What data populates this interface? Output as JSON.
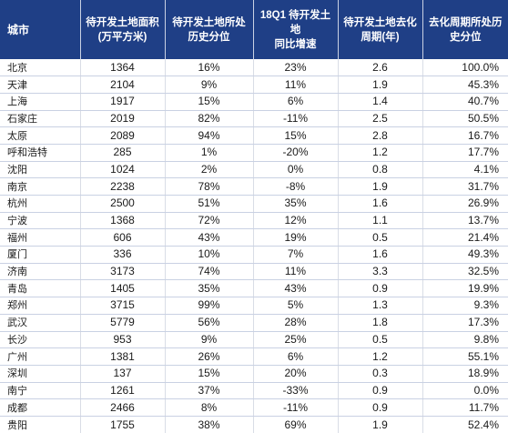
{
  "headers": {
    "city": "城市",
    "area_line1": "待开发土地面积",
    "area_line2": "(万平方米)",
    "pct_line1": "待开发土地所处",
    "pct_line2": "历史分位",
    "growth_line1": "18Q1 待开发土地",
    "growth_line2": "同比增速",
    "period_line1": "待开发土地去化",
    "period_line2": "周期(年)",
    "ppct_line1": "去化周期所处历",
    "ppct_line2": "史分位"
  },
  "rows": [
    {
      "city": "北京",
      "area": "1364",
      "pct": "16%",
      "growth": "23%",
      "period": "2.6",
      "ppct": "100.0%"
    },
    {
      "city": "天津",
      "area": "2104",
      "pct": "9%",
      "growth": "11%",
      "period": "1.9",
      "ppct": "45.3%"
    },
    {
      "city": "上海",
      "area": "1917",
      "pct": "15%",
      "growth": "6%",
      "period": "1.4",
      "ppct": "40.7%"
    },
    {
      "city": "石家庄",
      "area": "2019",
      "pct": "82%",
      "growth": "-11%",
      "period": "2.5",
      "ppct": "50.5%"
    },
    {
      "city": "太原",
      "area": "2089",
      "pct": "94%",
      "growth": "15%",
      "period": "2.8",
      "ppct": "16.7%"
    },
    {
      "city": "呼和浩特",
      "area": "285",
      "pct": "1%",
      "growth": "-20%",
      "period": "1.2",
      "ppct": "17.7%"
    },
    {
      "city": "沈阳",
      "area": "1024",
      "pct": "2%",
      "growth": "0%",
      "period": "0.8",
      "ppct": "4.1%"
    },
    {
      "city": "南京",
      "area": "2238",
      "pct": "78%",
      "growth": "-8%",
      "period": "1.9",
      "ppct": "31.7%"
    },
    {
      "city": "杭州",
      "area": "2500",
      "pct": "51%",
      "growth": "35%",
      "period": "1.6",
      "ppct": "26.9%"
    },
    {
      "city": "宁波",
      "area": "1368",
      "pct": "72%",
      "growth": "12%",
      "period": "1.1",
      "ppct": "13.7%"
    },
    {
      "city": "福州",
      "area": "606",
      "pct": "43%",
      "growth": "19%",
      "period": "0.5",
      "ppct": "21.4%"
    },
    {
      "city": "厦门",
      "area": "336",
      "pct": "10%",
      "growth": "7%",
      "period": "1.6",
      "ppct": "49.3%"
    },
    {
      "city": "济南",
      "area": "3173",
      "pct": "74%",
      "growth": "11%",
      "period": "3.3",
      "ppct": "32.5%"
    },
    {
      "city": "青岛",
      "area": "1405",
      "pct": "35%",
      "growth": "43%",
      "period": "0.9",
      "ppct": "19.9%"
    },
    {
      "city": "郑州",
      "area": "3715",
      "pct": "99%",
      "growth": "5%",
      "period": "1.3",
      "ppct": "9.3%"
    },
    {
      "city": "武汉",
      "area": "5779",
      "pct": "56%",
      "growth": "28%",
      "period": "1.8",
      "ppct": "17.3%"
    },
    {
      "city": "长沙",
      "area": "953",
      "pct": "9%",
      "growth": "25%",
      "period": "0.5",
      "ppct": "9.8%"
    },
    {
      "city": "广州",
      "area": "1381",
      "pct": "26%",
      "growth": "6%",
      "period": "1.2",
      "ppct": "55.1%"
    },
    {
      "city": "深圳",
      "area": "137",
      "pct": "15%",
      "growth": "20%",
      "period": "0.3",
      "ppct": "18.9%"
    },
    {
      "city": "南宁",
      "area": "1261",
      "pct": "37%",
      "growth": "-33%",
      "period": "0.9",
      "ppct": "0.0%"
    },
    {
      "city": "成都",
      "area": "2466",
      "pct": "8%",
      "growth": "-11%",
      "period": "0.9",
      "ppct": "11.7%"
    },
    {
      "city": "贵阳",
      "area": "1755",
      "pct": "38%",
      "growth": "69%",
      "period": "1.9",
      "ppct": "52.4%"
    }
  ]
}
